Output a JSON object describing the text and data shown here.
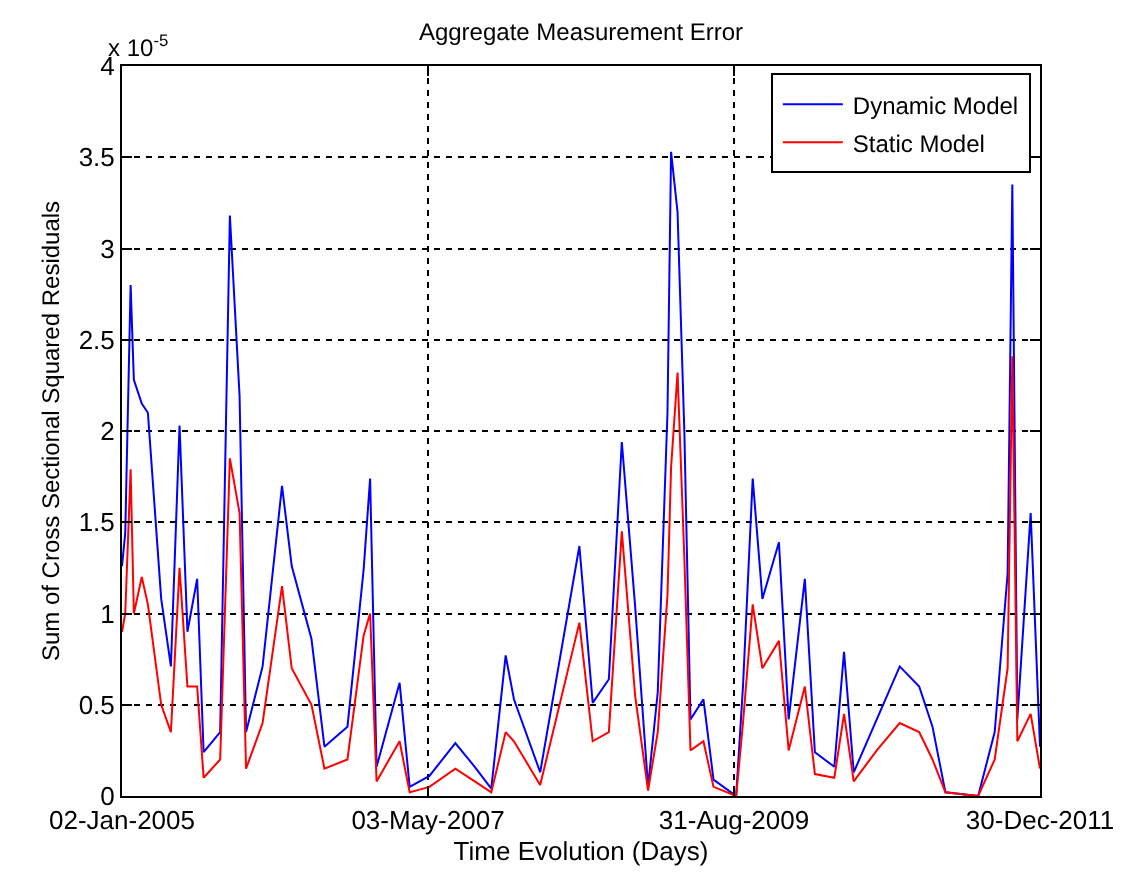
{
  "chart_data": {
    "type": "line",
    "title": "Aggregate Measurement Error",
    "xlabel": "Time Evolution (Days)",
    "ylabel": "Sum of Cross Sectional Squared Residuals",
    "annotations": [
      "x 10$^{-5}$"
    ],
    "x": [
      "2005-01-02",
      "2005-01-11",
      "2005-01-26",
      "2005-02-04",
      "2005-02-26",
      "2005-03-15",
      "2005-04-21",
      "2005-05-18",
      "2005-06-11",
      "2005-07-03",
      "2005-07-30",
      "2005-08-17",
      "2005-10-02",
      "2005-10-29",
      "2005-11-25",
      "2005-12-13",
      "2006-01-28",
      "2006-03-23",
      "2006-04-19",
      "2006-06-13",
      "2006-07-19",
      "2006-09-21",
      "2006-11-05",
      "2006-11-23",
      "2006-12-11",
      "2007-02-13",
      "2007-03-13",
      "2007-05-07",
      "2007-07-18",
      "2007-09-10",
      "2007-10-26",
      "2007-12-05",
      "2007-12-28",
      "2008-03-10",
      "2008-06-27",
      "2008-08-03",
      "2008-09-17",
      "2008-10-23",
      "2008-11-29",
      "2009-01-04",
      "2009-01-31",
      "2009-02-27",
      "2009-03-09",
      "2009-03-27",
      "2009-04-15",
      "2009-05-02",
      "2009-06-07",
      "2009-07-05",
      "2009-09-06",
      "2009-09-25",
      "2009-10-22",
      "2009-11-18",
      "2010-01-03",
      "2010-01-30",
      "2010-03-16",
      "2010-04-13",
      "2010-06-06",
      "2010-07-03",
      "2010-07-30",
      "2010-10-02",
      "2010-12-05",
      "2011-01-28",
      "2011-03-06",
      "2011-04-11",
      "2011-07-11",
      "2011-08-26",
      "2011-10-01",
      "2011-10-14",
      "2011-10-28",
      "2011-12-04",
      "2011-12-30"
    ],
    "series": [
      {
        "name": "Dynamic Model",
        "color": "#0000ff",
        "values": [
          1.26,
          1.44,
          2.8,
          2.28,
          2.15,
          2.1,
          1.08,
          0.71,
          2.03,
          0.9,
          1.19,
          0.24,
          0.35,
          3.18,
          2.19,
          0.35,
          0.71,
          1.7,
          1.26,
          0.86,
          0.27,
          0.38,
          1.24,
          1.74,
          0.16,
          0.62,
          0.05,
          0.11,
          0.29,
          0.16,
          0.04,
          0.77,
          0.53,
          0.13,
          1.37,
          0.51,
          0.64,
          1.94,
          1.04,
          0.05,
          0.57,
          2.1,
          3.53,
          3.2,
          1.99,
          0.42,
          0.53,
          0.09,
          0.0,
          0.6,
          1.74,
          1.08,
          1.39,
          0.42,
          1.19,
          0.24,
          0.16,
          0.79,
          0.13,
          0.42,
          0.71,
          0.6,
          0.38,
          0.02,
          0.0,
          0.35,
          1.22,
          3.35,
          0.42,
          1.55,
          0.27
        ]
      },
      {
        "name": "Static Model",
        "color": "#ff0000",
        "values": [
          0.9,
          1.0,
          1.79,
          1.0,
          1.2,
          1.05,
          0.5,
          0.35,
          1.25,
          0.6,
          0.6,
          0.1,
          0.2,
          1.85,
          1.55,
          0.15,
          0.4,
          1.15,
          0.7,
          0.5,
          0.15,
          0.2,
          0.88,
          1.0,
          0.08,
          0.3,
          0.02,
          0.05,
          0.15,
          0.08,
          0.02,
          0.35,
          0.3,
          0.06,
          0.95,
          0.3,
          0.35,
          1.45,
          0.55,
          0.03,
          0.35,
          1.1,
          1.8,
          2.32,
          1.3,
          0.25,
          0.3,
          0.05,
          0.0,
          0.4,
          1.05,
          0.7,
          0.85,
          0.25,
          0.6,
          0.12,
          0.1,
          0.45,
          0.08,
          0.25,
          0.4,
          0.35,
          0.2,
          0.02,
          0.0,
          0.2,
          0.7,
          2.41,
          0.3,
          0.45,
          0.15
        ]
      }
    ],
    "xlim": [
      "2005-01-02",
      "2011-12-30"
    ],
    "xticks": [
      {
        "value": "2005-01-02",
        "label": "02-Jan-2005"
      },
      {
        "value": "2007-05-03",
        "label": "03-May-2007"
      },
      {
        "value": "2009-08-31",
        "label": "31-Aug-2009"
      },
      {
        "value": "2011-12-30",
        "label": "30-Dec-2011"
      }
    ],
    "ylim": [
      0,
      4
    ],
    "yticks": [
      0,
      0.5,
      1,
      1.5,
      2,
      2.5,
      3,
      3.5,
      4
    ],
    "grid": true,
    "legend": "top right",
    "marker": "none",
    "line_style": "solid"
  }
}
